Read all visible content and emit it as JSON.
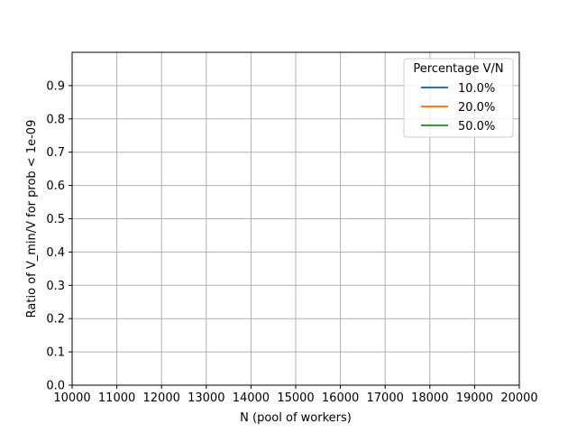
{
  "chart_data": {
    "type": "line",
    "title": "",
    "xlabel": "N (pool of workers)",
    "ylabel": "Ratio of V_min/V for prob < 1e-09",
    "xlim": [
      10000,
      20000
    ],
    "ylim": [
      0,
      1.0
    ],
    "x_ticks": [
      10000,
      11000,
      12000,
      13000,
      14000,
      15000,
      16000,
      17000,
      18000,
      19000,
      20000
    ],
    "x_tick_labels": [
      "10000",
      "11000",
      "12000",
      "13000",
      "14000",
      "15000",
      "16000",
      "17000",
      "18000",
      "19000",
      "20000"
    ],
    "y_ticks": [
      0.0,
      0.1,
      0.2,
      0.3,
      0.4,
      0.5,
      0.6,
      0.7,
      0.8,
      0.9
    ],
    "y_tick_labels": [
      "0.0",
      "0.1",
      "0.2",
      "0.3",
      "0.4",
      "0.5",
      "0.6",
      "0.7",
      "0.8",
      "0.9"
    ],
    "grid": true,
    "legend": {
      "title": "Percentage V/N",
      "placement": "top-right"
    },
    "series": [
      {
        "name": "10.0%",
        "color": "#1f77b4",
        "x": [],
        "y": []
      },
      {
        "name": "20.0%",
        "color": "#ff7f0e",
        "x": [],
        "y": []
      },
      {
        "name": "50.0%",
        "color": "#2ca02c",
        "x": [],
        "y": []
      }
    ]
  }
}
